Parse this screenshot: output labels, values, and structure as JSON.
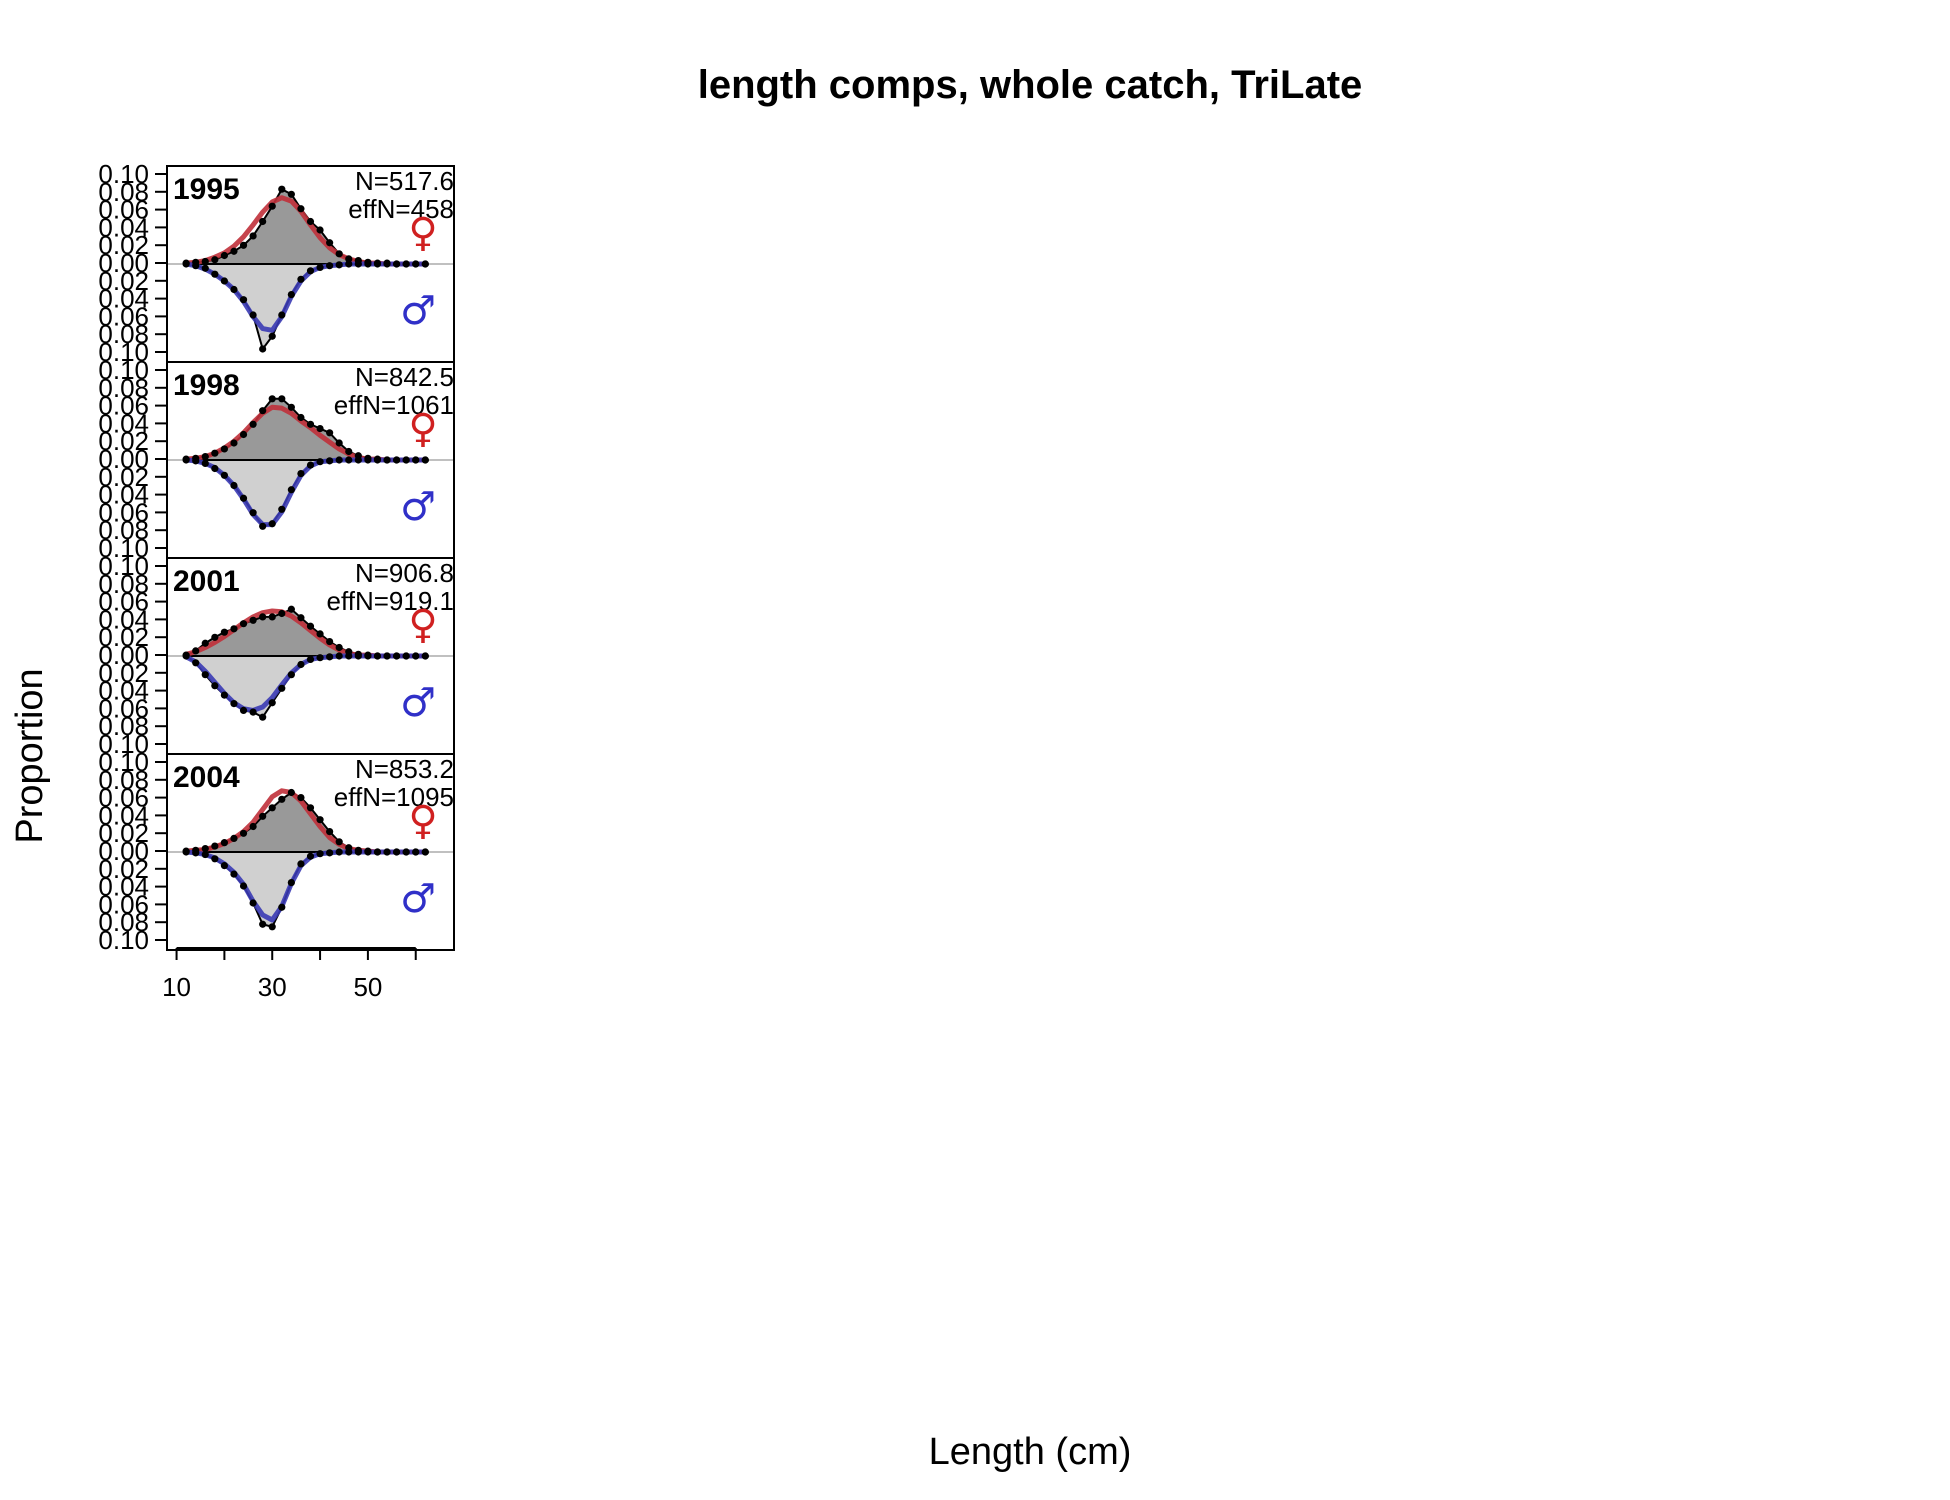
{
  "chart_data": {
    "type": "area",
    "title": "length comps, whole catch, TriLate",
    "xlabel": "Length (cm)",
    "ylabel": "Proportion",
    "xlim": [
      8,
      68
    ],
    "ylim": [
      -0.1,
      0.1
    ],
    "x_tick_values": [
      10,
      20,
      30,
      40,
      50,
      60
    ],
    "x_tick_labels": [
      "10",
      "30",
      "50"
    ],
    "y_tick_labels": [
      "0.10",
      "0.08",
      "0.06",
      "0.04",
      "0.02",
      "0.00",
      "0.02",
      "0.04",
      "0.06",
      "0.08",
      "0.10"
    ],
    "female_symbol": "♀",
    "male_symbol": "♂",
    "colors": {
      "female_fill": "#999999",
      "male_fill": "#d0d0d0",
      "female_expected": "#c0303a",
      "male_expected": "#3a3ab4",
      "observed": "#000000",
      "female_symbol": "#d02020",
      "male_symbol": "#3030c8"
    },
    "x": [
      12,
      14,
      16,
      18,
      20,
      22,
      24,
      26,
      28,
      30,
      32,
      34,
      36,
      38,
      40,
      42,
      44,
      46,
      48,
      50,
      52,
      54,
      56,
      58,
      60,
      62
    ],
    "panels": [
      {
        "year": "1995",
        "n_text": "N=517.6",
        "effn_text": "effN=458",
        "female_obs": [
          0.001,
          0.002,
          0.003,
          0.005,
          0.01,
          0.015,
          0.022,
          0.033,
          0.05,
          0.068,
          0.088,
          0.082,
          0.065,
          0.05,
          0.04,
          0.025,
          0.012,
          0.006,
          0.004,
          0.002,
          0.001,
          0.001,
          0.0,
          0.0,
          0.0,
          0.0
        ],
        "female_exp": [
          0.001,
          0.002,
          0.004,
          0.008,
          0.013,
          0.021,
          0.032,
          0.046,
          0.061,
          0.073,
          0.078,
          0.074,
          0.062,
          0.046,
          0.031,
          0.019,
          0.011,
          0.006,
          0.003,
          0.001,
          0.001,
          0.0,
          0.0,
          0.0,
          0.0,
          0.0
        ],
        "male_obs": [
          0.0,
          0.002,
          0.005,
          0.012,
          0.02,
          0.03,
          0.042,
          0.06,
          0.1,
          0.085,
          0.06,
          0.036,
          0.018,
          0.008,
          0.004,
          0.002,
          0.001,
          0.0,
          0.0,
          0.0,
          0.0,
          0.0,
          0.0,
          0.0,
          0.0,
          0.0
        ],
        "male_exp": [
          0.0,
          0.002,
          0.006,
          0.012,
          0.02,
          0.03,
          0.044,
          0.062,
          0.076,
          0.078,
          0.062,
          0.038,
          0.02,
          0.009,
          0.004,
          0.002,
          0.001,
          0.0,
          0.0,
          0.0,
          0.0,
          0.0,
          0.0,
          0.0,
          0.0,
          0.0
        ]
      },
      {
        "year": "1998",
        "n_text": "N=842.5",
        "effn_text": "effN=1061",
        "female_obs": [
          0.001,
          0.002,
          0.004,
          0.008,
          0.013,
          0.02,
          0.03,
          0.042,
          0.058,
          0.072,
          0.072,
          0.062,
          0.05,
          0.042,
          0.037,
          0.032,
          0.02,
          0.01,
          0.005,
          0.002,
          0.001,
          0.0,
          0.0,
          0.0,
          0.0,
          0.0
        ],
        "female_exp": [
          0.001,
          0.002,
          0.004,
          0.008,
          0.014,
          0.022,
          0.032,
          0.044,
          0.055,
          0.062,
          0.061,
          0.055,
          0.046,
          0.038,
          0.029,
          0.021,
          0.013,
          0.007,
          0.003,
          0.001,
          0.001,
          0.0,
          0.0,
          0.0,
          0.0,
          0.0
        ],
        "male_obs": [
          0.0,
          0.001,
          0.004,
          0.01,
          0.018,
          0.03,
          0.045,
          0.062,
          0.078,
          0.075,
          0.058,
          0.035,
          0.016,
          0.006,
          0.002,
          0.001,
          0.0,
          0.0,
          0.0,
          0.0,
          0.0,
          0.0,
          0.0,
          0.0,
          0.0,
          0.0
        ],
        "male_exp": [
          0.0,
          0.001,
          0.004,
          0.009,
          0.018,
          0.03,
          0.046,
          0.064,
          0.076,
          0.076,
          0.061,
          0.038,
          0.018,
          0.007,
          0.002,
          0.001,
          0.0,
          0.0,
          0.0,
          0.0,
          0.0,
          0.0,
          0.0,
          0.0,
          0.0,
          0.0
        ]
      },
      {
        "year": "2001",
        "n_text": "N=906.8",
        "effn_text": "effN=919.1",
        "female_obs": [
          0.001,
          0.006,
          0.015,
          0.022,
          0.028,
          0.032,
          0.038,
          0.042,
          0.046,
          0.046,
          0.05,
          0.055,
          0.045,
          0.035,
          0.026,
          0.017,
          0.01,
          0.005,
          0.002,
          0.001,
          0.0,
          0.0,
          0.0,
          0.0,
          0.0,
          0.0
        ],
        "female_exp": [
          0.002,
          0.005,
          0.01,
          0.016,
          0.023,
          0.031,
          0.039,
          0.046,
          0.051,
          0.053,
          0.052,
          0.047,
          0.039,
          0.03,
          0.021,
          0.013,
          0.007,
          0.003,
          0.001,
          0.001,
          0.0,
          0.0,
          0.0,
          0.0,
          0.0,
          0.0
        ],
        "male_obs": [
          0.0,
          0.008,
          0.022,
          0.035,
          0.046,
          0.056,
          0.064,
          0.066,
          0.072,
          0.055,
          0.038,
          0.022,
          0.01,
          0.004,
          0.002,
          0.001,
          0.0,
          0.0,
          0.0,
          0.0,
          0.0,
          0.0,
          0.0,
          0.0,
          0.0,
          0.0
        ],
        "male_exp": [
          0.001,
          0.007,
          0.018,
          0.031,
          0.044,
          0.055,
          0.062,
          0.064,
          0.06,
          0.049,
          0.034,
          0.02,
          0.01,
          0.004,
          0.002,
          0.001,
          0.0,
          0.0,
          0.0,
          0.0,
          0.0,
          0.0,
          0.0,
          0.0,
          0.0,
          0.0
        ]
      },
      {
        "year": "2004",
        "n_text": "N=853.2",
        "effn_text": "effN=1095",
        "female_obs": [
          0.001,
          0.002,
          0.004,
          0.007,
          0.011,
          0.016,
          0.022,
          0.03,
          0.042,
          0.052,
          0.062,
          0.07,
          0.064,
          0.052,
          0.038,
          0.024,
          0.012,
          0.005,
          0.002,
          0.001,
          0.0,
          0.0,
          0.0,
          0.0,
          0.0,
          0.0
        ],
        "female_exp": [
          0.001,
          0.002,
          0.003,
          0.006,
          0.01,
          0.016,
          0.024,
          0.035,
          0.05,
          0.065,
          0.072,
          0.07,
          0.06,
          0.045,
          0.03,
          0.017,
          0.009,
          0.004,
          0.002,
          0.001,
          0.0,
          0.0,
          0.0,
          0.0,
          0.0,
          0.0
        ],
        "male_obs": [
          0.0,
          0.001,
          0.003,
          0.008,
          0.016,
          0.026,
          0.04,
          0.06,
          0.085,
          0.088,
          0.065,
          0.036,
          0.014,
          0.005,
          0.002,
          0.001,
          0.0,
          0.0,
          0.0,
          0.0,
          0.0,
          0.0,
          0.0,
          0.0,
          0.0,
          0.0
        ],
        "male_exp": [
          0.0,
          0.001,
          0.003,
          0.007,
          0.014,
          0.024,
          0.038,
          0.058,
          0.074,
          0.08,
          0.064,
          0.037,
          0.016,
          0.006,
          0.002,
          0.001,
          0.0,
          0.0,
          0.0,
          0.0,
          0.0,
          0.0,
          0.0,
          0.0,
          0.0,
          0.0
        ]
      }
    ]
  }
}
